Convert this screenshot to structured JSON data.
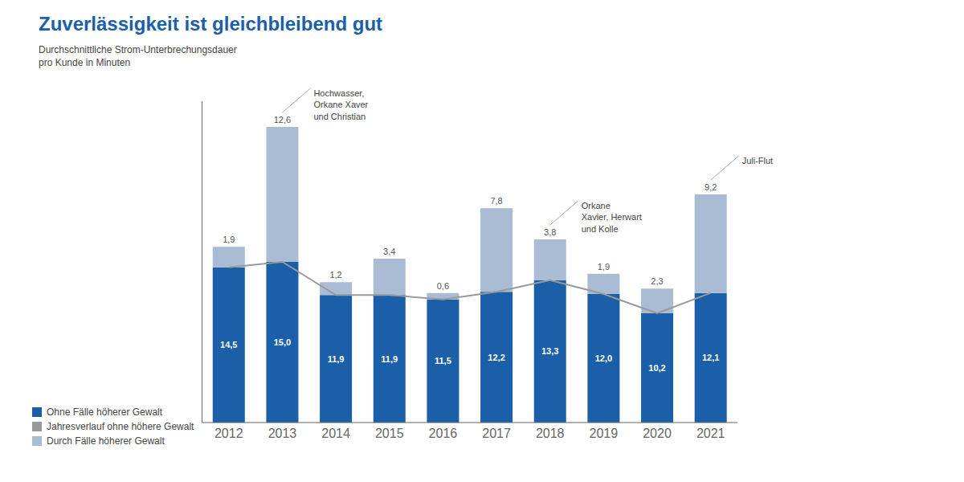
{
  "chart_data": {
    "type": "bar",
    "title": "Zuverlässigkeit ist gleichbleibend gut",
    "subtitle": [
      "Durchschnittliche Strom-Unterbrechungsdauer",
      "pro Kunde in Minuten"
    ],
    "categories": [
      "2012",
      "2013",
      "2014",
      "2015",
      "2016",
      "2017",
      "2018",
      "2019",
      "2020",
      "2021"
    ],
    "stacked": true,
    "data_labels": true,
    "series": [
      {
        "name": "Ohne Fälle höherer Gewalt",
        "type": "bar",
        "color": "#1a5fa8",
        "values": [
          14.5,
          15.0,
          11.9,
          11.9,
          11.5,
          12.2,
          13.3,
          12.0,
          10.2,
          12.1
        ],
        "value_labels": [
          "14,5",
          "15,0",
          "11,9",
          "11,9",
          "11,5",
          "12,2",
          "13,3",
          "12,0",
          "10,2",
          "12,1"
        ]
      },
      {
        "name": "Jahresverlauf ohne höhere Gewalt",
        "type": "line",
        "color": "#999999",
        "values": [
          14.5,
          15.0,
          11.9,
          11.9,
          11.5,
          12.2,
          13.3,
          12.0,
          10.2,
          12.1
        ]
      },
      {
        "name": "Durch Fälle höherer Gewalt",
        "type": "bar",
        "color": "#aabbd4",
        "values": [
          1.9,
          12.6,
          1.2,
          3.4,
          0.6,
          7.8,
          3.8,
          1.9,
          2.3,
          9.2
        ],
        "value_labels": [
          "1,9",
          "12,6",
          "1,2",
          "3,4",
          "0,6",
          "7,8",
          "3,8",
          "1,9",
          "2,3",
          "9,2"
        ]
      }
    ],
    "ylim": [
      0,
      30
    ],
    "yticks": [],
    "tick_labels": "x",
    "grid": false,
    "legend": "lower left",
    "annotations": [
      {
        "category": "2013",
        "text": "Hochwasser,\nOrkane Xaver\nund Christian"
      },
      {
        "category": "2018",
        "text": "Orkane\nXavier, Herwart\nund Kolle"
      },
      {
        "category": "2021",
        "text": "Juli-Flut"
      }
    ]
  }
}
